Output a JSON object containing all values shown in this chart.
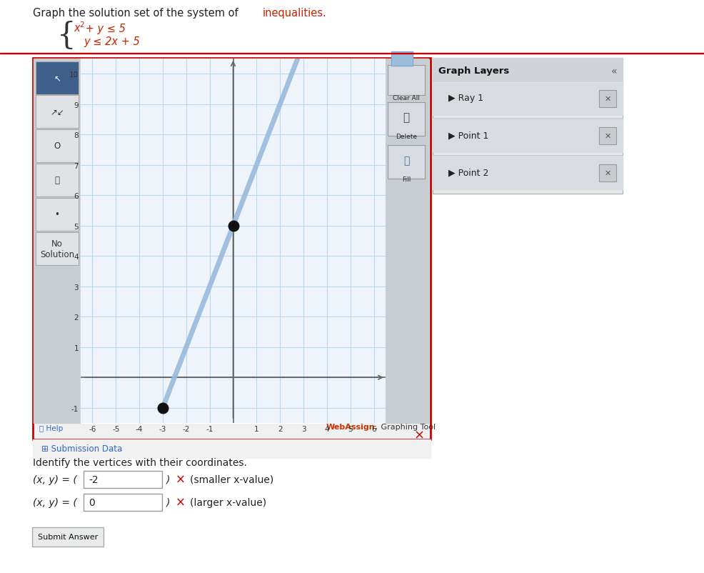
{
  "xlim": [
    -6.5,
    6.5
  ],
  "ylim": [
    -1.5,
    10.5
  ],
  "xticks": [
    -6,
    -5,
    -4,
    -3,
    -2,
    -1,
    1,
    2,
    3,
    4,
    5,
    6
  ],
  "yticks": [
    -1,
    1,
    2,
    3,
    4,
    5,
    6,
    7,
    8,
    9,
    10
  ],
  "grid_color": "#b8d8f0",
  "axis_color": "#666666",
  "ray_color": "#99bbdd",
  "ray_lw": 5.0,
  "point1": [
    0,
    5
  ],
  "point2": [
    -3,
    -1
  ],
  "point_color": "#111111",
  "point_size": 55,
  "ray_x1": -3.0,
  "ray_y1": -1.0,
  "ray_x2": 2.75,
  "ray_y2": 10.5,
  "title_color": "#222222",
  "red_color": "#cc2200",
  "outer_border": "#cc0000",
  "toolbar_bg": "#c8cdd2",
  "graph_bg": "#eef4fa",
  "right_btn_bg": "#c8cdd2",
  "layers_bg": "#e0e3e7",
  "layers_header_bg": "#d0d4d8",
  "layer_row_bg": "#d8dbdf",
  "webassign_red": "#cc3300",
  "submission_blue": "#3366cc",
  "vertex1_val": "-2",
  "vertex2_val": "0"
}
